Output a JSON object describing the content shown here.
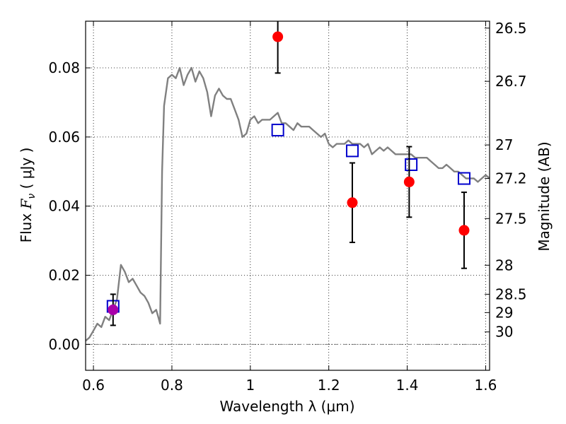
{
  "chart_data": {
    "type": "scatter",
    "xlabel": "Wavelength  λ (μm)",
    "ylabel": {
      "prefix": "Flux  ",
      "symbol": "F",
      "subscript": "ν",
      "suffix": "  ( μJy )"
    },
    "ylabel_right": "Magnitude (AB)",
    "xlim": [
      0.58,
      1.61
    ],
    "ylim": [
      -0.0075,
      0.0935
    ],
    "grid": true,
    "x_ticks": [
      0.6,
      0.8,
      1.0,
      1.2,
      1.4,
      1.6
    ],
    "x_tick_labels": [
      "0.6",
      "0.8",
      "1",
      "1.2",
      "1.4",
      "1.6"
    ],
    "y_ticks": [
      0.0,
      0.02,
      0.04,
      0.06,
      0.08
    ],
    "y_tick_labels": [
      "0.00",
      "0.02",
      "0.04",
      "0.06",
      "0.08"
    ],
    "right_axis": {
      "ticks": [
        {
          "label": "26.5",
          "flux": 0.0915
        },
        {
          "label": "26.7",
          "flux": 0.0761
        },
        {
          "label": "27",
          "flux": 0.0577
        },
        {
          "label": "27.2",
          "flux": 0.048
        },
        {
          "label": "27.5",
          "flux": 0.0364
        },
        {
          "label": "28",
          "flux": 0.0229
        },
        {
          "label": "28.5",
          "flux": 0.0145
        },
        {
          "label": "29",
          "flux": 0.0092
        },
        {
          "label": "30",
          "flux": 0.0036
        }
      ]
    },
    "series": [
      {
        "kind": "line",
        "color": "#808080",
        "points": [
          [
            0.58,
            0.001
          ],
          [
            0.59,
            0.002
          ],
          [
            0.6,
            0.004
          ],
          [
            0.61,
            0.006
          ],
          [
            0.62,
            0.005
          ],
          [
            0.63,
            0.008
          ],
          [
            0.64,
            0.007
          ],
          [
            0.65,
            0.01
          ],
          [
            0.66,
            0.013
          ],
          [
            0.665,
            0.018
          ],
          [
            0.67,
            0.023
          ],
          [
            0.68,
            0.021
          ],
          [
            0.69,
            0.018
          ],
          [
            0.7,
            0.019
          ],
          [
            0.71,
            0.017
          ],
          [
            0.72,
            0.015
          ],
          [
            0.73,
            0.014
          ],
          [
            0.74,
            0.012
          ],
          [
            0.75,
            0.009
          ],
          [
            0.76,
            0.01
          ],
          [
            0.765,
            0.008
          ],
          [
            0.77,
            0.006
          ],
          [
            0.775,
            0.05
          ],
          [
            0.78,
            0.069
          ],
          [
            0.79,
            0.077
          ],
          [
            0.8,
            0.078
          ],
          [
            0.81,
            0.077
          ],
          [
            0.82,
            0.08
          ],
          [
            0.83,
            0.075
          ],
          [
            0.84,
            0.078
          ],
          [
            0.85,
            0.08
          ],
          [
            0.86,
            0.076
          ],
          [
            0.87,
            0.079
          ],
          [
            0.88,
            0.077
          ],
          [
            0.89,
            0.073
          ],
          [
            0.9,
            0.066
          ],
          [
            0.91,
            0.072
          ],
          [
            0.92,
            0.074
          ],
          [
            0.93,
            0.072
          ],
          [
            0.94,
            0.071
          ],
          [
            0.95,
            0.071
          ],
          [
            0.96,
            0.068
          ],
          [
            0.97,
            0.065
          ],
          [
            0.98,
            0.06
          ],
          [
            0.99,
            0.061
          ],
          [
            1.0,
            0.065
          ],
          [
            1.01,
            0.066
          ],
          [
            1.02,
            0.064
          ],
          [
            1.03,
            0.065
          ],
          [
            1.04,
            0.065
          ],
          [
            1.05,
            0.065
          ],
          [
            1.06,
            0.066
          ],
          [
            1.07,
            0.067
          ],
          [
            1.08,
            0.064
          ],
          [
            1.09,
            0.064
          ],
          [
            1.1,
            0.063
          ],
          [
            1.11,
            0.062
          ],
          [
            1.12,
            0.064
          ],
          [
            1.13,
            0.063
          ],
          [
            1.14,
            0.063
          ],
          [
            1.15,
            0.063
          ],
          [
            1.16,
            0.062
          ],
          [
            1.17,
            0.061
          ],
          [
            1.18,
            0.06
          ],
          [
            1.19,
            0.061
          ],
          [
            1.2,
            0.058
          ],
          [
            1.21,
            0.057
          ],
          [
            1.22,
            0.058
          ],
          [
            1.23,
            0.058
          ],
          [
            1.24,
            0.058
          ],
          [
            1.25,
            0.059
          ],
          [
            1.26,
            0.058
          ],
          [
            1.27,
            0.058
          ],
          [
            1.28,
            0.058
          ],
          [
            1.29,
            0.057
          ],
          [
            1.3,
            0.058
          ],
          [
            1.31,
            0.055
          ],
          [
            1.32,
            0.056
          ],
          [
            1.33,
            0.057
          ],
          [
            1.34,
            0.056
          ],
          [
            1.35,
            0.057
          ],
          [
            1.36,
            0.056
          ],
          [
            1.37,
            0.055
          ],
          [
            1.38,
            0.055
          ],
          [
            1.39,
            0.055
          ],
          [
            1.4,
            0.055
          ],
          [
            1.41,
            0.055
          ],
          [
            1.42,
            0.054
          ],
          [
            1.43,
            0.054
          ],
          [
            1.44,
            0.054
          ],
          [
            1.45,
            0.054
          ],
          [
            1.46,
            0.053
          ],
          [
            1.47,
            0.052
          ],
          [
            1.48,
            0.051
          ],
          [
            1.49,
            0.051
          ],
          [
            1.5,
            0.052
          ],
          [
            1.51,
            0.051
          ],
          [
            1.52,
            0.05
          ],
          [
            1.53,
            0.05
          ],
          [
            1.54,
            0.049
          ],
          [
            1.55,
            0.048
          ],
          [
            1.56,
            0.048
          ],
          [
            1.57,
            0.048
          ],
          [
            1.58,
            0.047
          ],
          [
            1.59,
            0.048
          ],
          [
            1.6,
            0.049
          ],
          [
            1.61,
            0.048
          ]
        ]
      },
      {
        "kind": "open-square",
        "color": "#0000cc",
        "points": [
          [
            0.65,
            0.011
          ],
          [
            1.07,
            0.062
          ],
          [
            1.26,
            0.056
          ],
          [
            1.41,
            0.052
          ],
          [
            1.545,
            0.048
          ]
        ]
      },
      {
        "kind": "filled-circle-errorbar",
        "color": "#ff0000",
        "points": [
          {
            "x": 1.07,
            "y": 0.089,
            "err": 0.0105
          },
          {
            "x": 1.26,
            "y": 0.041,
            "err": 0.0115
          },
          {
            "x": 1.405,
            "y": 0.047,
            "err": 0.0102
          },
          {
            "x": 1.545,
            "y": 0.033,
            "err": 0.011
          }
        ]
      },
      {
        "kind": "filled-circle-errorbar",
        "color": "#aa00aa",
        "points": [
          {
            "x": 0.65,
            "y": 0.01,
            "err": 0.0045
          }
        ]
      }
    ],
    "hline": {
      "y": 0.0,
      "style": "dash-dot",
      "color": "#808080"
    }
  }
}
